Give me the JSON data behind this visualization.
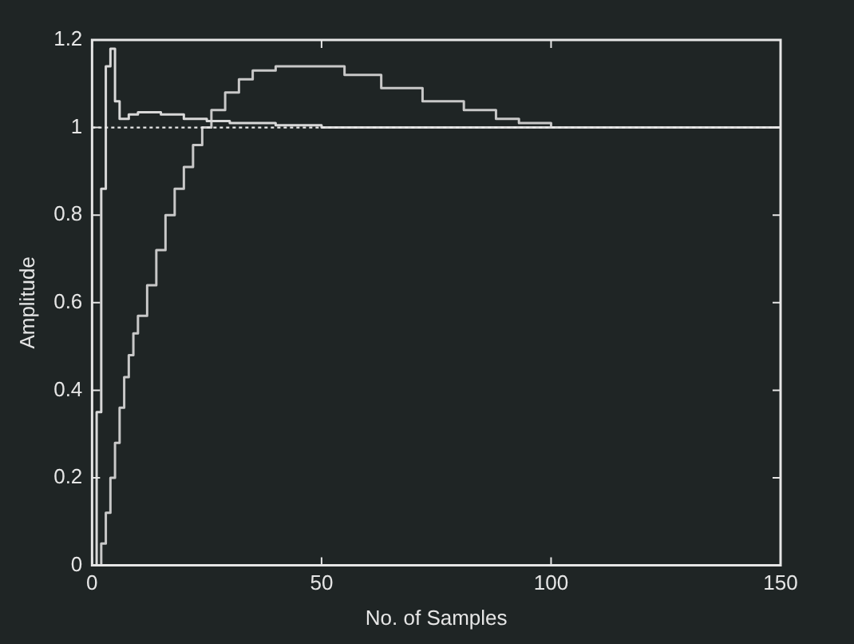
{
  "chart_data": {
    "type": "step",
    "xlabel": "No. of Samples",
    "ylabel": "Amplitude",
    "xlim": [
      0,
      150
    ],
    "xticks": [
      0,
      50,
      100,
      150
    ],
    "ylim": [
      0,
      1.2
    ],
    "yticks": [
      0,
      0.2,
      0.4,
      0.6,
      0.8,
      1,
      1.2
    ],
    "grid": false,
    "legend": false,
    "marker": "none",
    "line_style": "solid",
    "ref_lines": [
      {
        "axis": "y",
        "value": 1,
        "color": "#e8e8e8",
        "line_style": "dotted"
      }
    ],
    "series": [
      {
        "color": "#d8d8d8",
        "x": [
          0,
          1,
          2,
          3,
          4,
          5,
          6,
          7,
          8,
          10,
          15,
          20,
          25,
          30,
          40,
          50,
          150
        ],
        "values": [
          0,
          0.35,
          0.86,
          1.14,
          1.18,
          1.06,
          1.02,
          1.02,
          1.03,
          1.035,
          1.03,
          1.02,
          1.015,
          1.01,
          1.005,
          1,
          1
        ]
      },
      {
        "color": "#c8c8c8",
        "x": [
          0,
          1,
          2,
          3,
          4,
          5,
          6,
          7,
          8,
          9,
          10,
          12,
          14,
          16,
          18,
          20,
          22,
          24,
          26,
          29,
          32,
          35,
          40,
          48,
          55,
          63,
          72,
          81,
          88,
          93,
          100,
          150
        ],
        "values": [
          0,
          0,
          0.05,
          0.12,
          0.2,
          0.28,
          0.36,
          0.43,
          0.48,
          0.53,
          0.57,
          0.64,
          0.72,
          0.8,
          0.86,
          0.91,
          0.96,
          1,
          1.04,
          1.08,
          1.11,
          1.13,
          1.14,
          1.14,
          1.12,
          1.09,
          1.06,
          1.04,
          1.02,
          1.01,
          1,
          1
        ]
      }
    ]
  }
}
